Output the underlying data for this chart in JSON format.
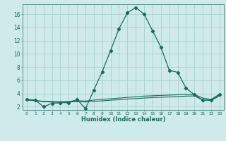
{
  "xlabel": "Humidex (Indice chaleur)",
  "bg_color": "#ceeaea",
  "line_color": "#1a6b5e",
  "grid_color": "#aacfcf",
  "line1_x": [
    0,
    1,
    2,
    3,
    4,
    5,
    6,
    7,
    8,
    9,
    10,
    11,
    12,
    13,
    14,
    15,
    16,
    17,
    18,
    19,
    20,
    21,
    22,
    23
  ],
  "line1_y": [
    3.1,
    3.0,
    2.0,
    2.5,
    2.6,
    2.6,
    3.1,
    1.7,
    4.5,
    7.3,
    10.5,
    13.8,
    16.2,
    17.0,
    16.0,
    13.5,
    11.0,
    7.5,
    7.2,
    4.8,
    3.8,
    3.0,
    3.0,
    3.8
  ],
  "line2_x": [
    0,
    1,
    2,
    3,
    4,
    5,
    6,
    7,
    8,
    9,
    10,
    11,
    12,
    13,
    14,
    15,
    16,
    17,
    18,
    19,
    20,
    21,
    22,
    23
  ],
  "line2_y": [
    3.1,
    2.95,
    2.8,
    2.8,
    2.75,
    2.8,
    2.9,
    2.85,
    3.0,
    3.1,
    3.2,
    3.3,
    3.4,
    3.5,
    3.6,
    3.65,
    3.7,
    3.75,
    3.8,
    3.85,
    3.85,
    3.3,
    3.1,
    3.9
  ],
  "line3_x": [
    0,
    1,
    2,
    3,
    4,
    5,
    6,
    7,
    8,
    9,
    10,
    11,
    12,
    13,
    14,
    15,
    16,
    17,
    18,
    19,
    20,
    21,
    22,
    23
  ],
  "line3_y": [
    3.0,
    2.9,
    2.75,
    2.7,
    2.65,
    2.72,
    2.75,
    2.72,
    2.8,
    2.88,
    2.98,
    3.05,
    3.15,
    3.22,
    3.3,
    3.38,
    3.42,
    3.48,
    3.52,
    3.6,
    3.62,
    3.0,
    2.95,
    3.62
  ],
  "ylim": [
    1.5,
    17.5
  ],
  "yticks": [
    2,
    4,
    6,
    8,
    10,
    12,
    14,
    16
  ],
  "xlim": [
    -0.5,
    23.5
  ],
  "xticks": [
    0,
    1,
    2,
    3,
    4,
    5,
    6,
    7,
    8,
    9,
    10,
    11,
    12,
    13,
    14,
    15,
    16,
    17,
    18,
    19,
    20,
    21,
    22,
    23
  ],
  "xtick_labels": [
    "0",
    "1",
    "2",
    "3",
    "4",
    "5",
    "6",
    "7",
    "8",
    "9",
    "10",
    "11",
    "12",
    "13",
    "14",
    "15",
    "16",
    "17",
    "18",
    "19",
    "20",
    "21",
    "22",
    "23"
  ]
}
